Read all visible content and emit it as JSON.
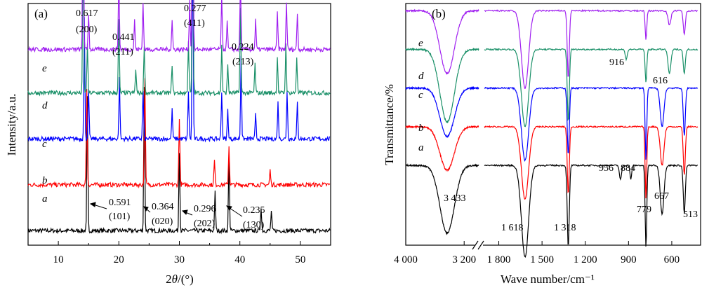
{
  "chart_data": [
    {
      "type": "line",
      "panel_label": "(a)",
      "xlabel_parts": [
        "2",
        "θ",
        "/(°)"
      ],
      "ylabel": "Intensity/a.u.",
      "xlim": [
        5,
        55
      ],
      "x_ticks": [
        10,
        20,
        30,
        40,
        50
      ],
      "x_tick_labels": [
        "10",
        "20",
        "30",
        "40",
        "50"
      ],
      "y_ticks_shown": false,
      "grid": false,
      "series": [
        {
          "name": "a",
          "color": "#000000",
          "baseline": 0.06,
          "peaks": [
            [
              14.8,
              0.55
            ],
            [
              24.2,
              0.6
            ],
            [
              30.0,
              0.33
            ],
            [
              35.9,
              0.16
            ],
            [
              38.2,
              0.32
            ],
            [
              43.5,
              0.1
            ],
            [
              45.2,
              0.08
            ]
          ]
        },
        {
          "name": "b",
          "color": "#ff0000",
          "baseline": 0.25,
          "peaks": [
            [
              14.7,
              0.4
            ],
            [
              24.3,
              0.45
            ],
            [
              30.0,
              0.28
            ],
            [
              35.8,
              0.1
            ],
            [
              38.2,
              0.16
            ],
            [
              45.0,
              0.06
            ]
          ]
        },
        {
          "name": "c",
          "color": "#0000ff",
          "baseline": 0.44,
          "peaks": [
            [
              14.3,
              0.5
            ],
            [
              15.0,
              0.2
            ],
            [
              20.1,
              0.25
            ],
            [
              24.0,
              0.2
            ],
            [
              28.8,
              0.12
            ],
            [
              31.5,
              0.2
            ],
            [
              32.2,
              0.9
            ],
            [
              37.0,
              0.2
            ],
            [
              38.0,
              0.12
            ],
            [
              40.2,
              0.35
            ],
            [
              42.6,
              0.1
            ],
            [
              46.3,
              0.15
            ],
            [
              47.8,
              0.2
            ],
            [
              49.5,
              0.15
            ]
          ]
        },
        {
          "name": "d",
          "color": "#1a9068",
          "baseline": 0.63,
          "peaks": [
            [
              14.1,
              0.65
            ],
            [
              14.8,
              0.2
            ],
            [
              20.0,
              0.3
            ],
            [
              22.8,
              0.1
            ],
            [
              24.2,
              0.2
            ],
            [
              28.8,
              0.12
            ],
            [
              31.5,
              0.22
            ],
            [
              32.2,
              1.0
            ],
            [
              37.0,
              0.2
            ],
            [
              38.0,
              0.12
            ],
            [
              40.1,
              0.35
            ],
            [
              42.5,
              0.12
            ],
            [
              46.2,
              0.15
            ],
            [
              47.6,
              0.2
            ],
            [
              49.4,
              0.15
            ]
          ]
        },
        {
          "name": "e",
          "color": "#a020f0",
          "baseline": 0.81,
          "peaks": [
            [
              14.1,
              0.8
            ],
            [
              15.0,
              0.15
            ],
            [
              20.0,
              0.3
            ],
            [
              22.6,
              0.12
            ],
            [
              24.0,
              0.2
            ],
            [
              28.8,
              0.12
            ],
            [
              31.7,
              0.2
            ],
            [
              32.2,
              1.35
            ],
            [
              37.0,
              0.22
            ],
            [
              37.9,
              0.12
            ],
            [
              40.1,
              0.3
            ],
            [
              42.6,
              0.12
            ],
            [
              46.2,
              0.15
            ],
            [
              47.7,
              0.2
            ],
            [
              49.5,
              0.15
            ]
          ]
        }
      ],
      "annotations": [
        {
          "d": "0.617",
          "hkl": "(200)"
        },
        {
          "d": "0.441",
          "hkl": "(211)"
        },
        {
          "d": "0.277",
          "hkl": "(411)"
        },
        {
          "d": "0.224",
          "hkl": "(213)"
        },
        {
          "d": "0.591",
          "hkl": "(101)"
        },
        {
          "d": "0.364",
          "hkl": "(020)"
        },
        {
          "d": "0.296",
          "hkl": "(202)"
        },
        {
          "d": "0.235",
          "hkl": "(130)"
        }
      ]
    },
    {
      "type": "line",
      "panel_label": "(b)",
      "xlabel": "Wave number/cm⁻¹",
      "ylabel": "Transmittance/%",
      "x_reversed": true,
      "x_axis_break": [
        3000,
        1900
      ],
      "x_ticks": [
        4000,
        3200,
        1800,
        1500,
        1200,
        900,
        600
      ],
      "x_tick_labels": [
        "4 000",
        "3 200",
        "1 800",
        "1 500",
        "1 200",
        "900",
        "600"
      ],
      "y_ticks_shown": false,
      "grid": false,
      "series": [
        {
          "name": "a",
          "color": "#000000",
          "offset": 0.2,
          "bands": [
            [
              3433,
              0.28
            ],
            [
              1618,
              0.38
            ],
            [
              1318,
              0.34
            ],
            [
              956,
              0.06
            ],
            [
              884,
              0.06
            ],
            [
              779,
              0.34
            ],
            [
              667,
              0.2
            ],
            [
              513,
              0.2
            ]
          ]
        },
        {
          "name": "b",
          "color": "#ff0000",
          "offset": 0.36,
          "bands": [
            [
              3433,
              0.18
            ],
            [
              1618,
              0.3
            ],
            [
              1318,
              0.28
            ],
            [
              779,
              0.3
            ],
            [
              667,
              0.16
            ],
            [
              513,
              0.2
            ]
          ]
        },
        {
          "name": "c",
          "color": "#0000ff",
          "offset": 0.52,
          "bands": [
            [
              3433,
              0.2
            ],
            [
              1618,
              0.3
            ],
            [
              1318,
              0.28
            ],
            [
              779,
              0.3
            ],
            [
              667,
              0.16
            ],
            [
              513,
              0.2
            ]
          ]
        },
        {
          "name": "d",
          "color": "#1a9068",
          "offset": 0.68,
          "bands": [
            [
              3433,
              0.3
            ],
            [
              1618,
              0.32
            ],
            [
              1318,
              0.3
            ],
            [
              916,
              0.04
            ],
            [
              779,
              0.14
            ],
            [
              616,
              0.1
            ],
            [
              513,
              0.1
            ]
          ]
        },
        {
          "name": "e",
          "color": "#a020f0",
          "offset": 0.84,
          "bands": [
            [
              3433,
              0.26
            ],
            [
              1618,
              0.32
            ],
            [
              1318,
              0.28
            ],
            [
              779,
              0.12
            ],
            [
              616,
              0.06
            ],
            [
              513,
              0.1
            ]
          ]
        }
      ],
      "annotations": [
        "3 433",
        "1 618",
        "1 318",
        "956",
        "884",
        "779",
        "667",
        "513",
        "916",
        "616"
      ]
    }
  ]
}
